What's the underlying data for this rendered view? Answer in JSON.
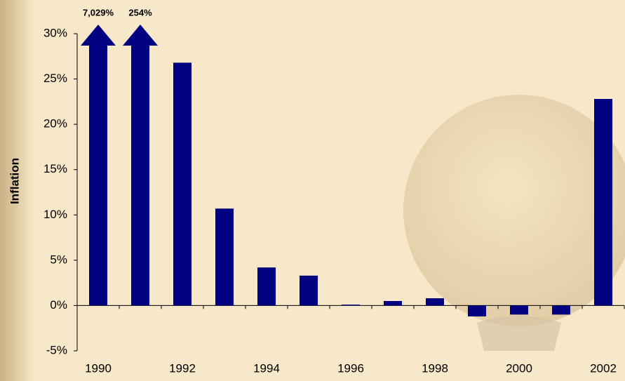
{
  "chart_data": {
    "type": "bar",
    "y_label": "Inflation",
    "categories": [
      "1990",
      null,
      "1992",
      null,
      "1994",
      null,
      "1996",
      null,
      "1998",
      null,
      "2000",
      null,
      "2002"
    ],
    "values": [
      7029,
      254,
      26.8,
      10.7,
      4.2,
      3.3,
      0.1,
      0.5,
      0.8,
      -1.2,
      -1.0,
      -1.0,
      22.8
    ],
    "value_labels": [
      "7,029%",
      "254%",
      null,
      null,
      null,
      null,
      null,
      null,
      null,
      null,
      null,
      null,
      null
    ],
    "color": "#000080",
    "ylim": [
      -5,
      30
    ],
    "yticks": [
      {
        "value": -5,
        "label": "-5%"
      },
      {
        "value": 0,
        "label": "0%"
      },
      {
        "value": 5,
        "label": "5%"
      },
      {
        "value": 10,
        "label": "10%"
      },
      {
        "value": 15,
        "label": "15%"
      },
      {
        "value": 20,
        "label": "20%"
      },
      {
        "value": 25,
        "label": "25%"
      },
      {
        "value": 30,
        "label": "30%"
      }
    ]
  }
}
